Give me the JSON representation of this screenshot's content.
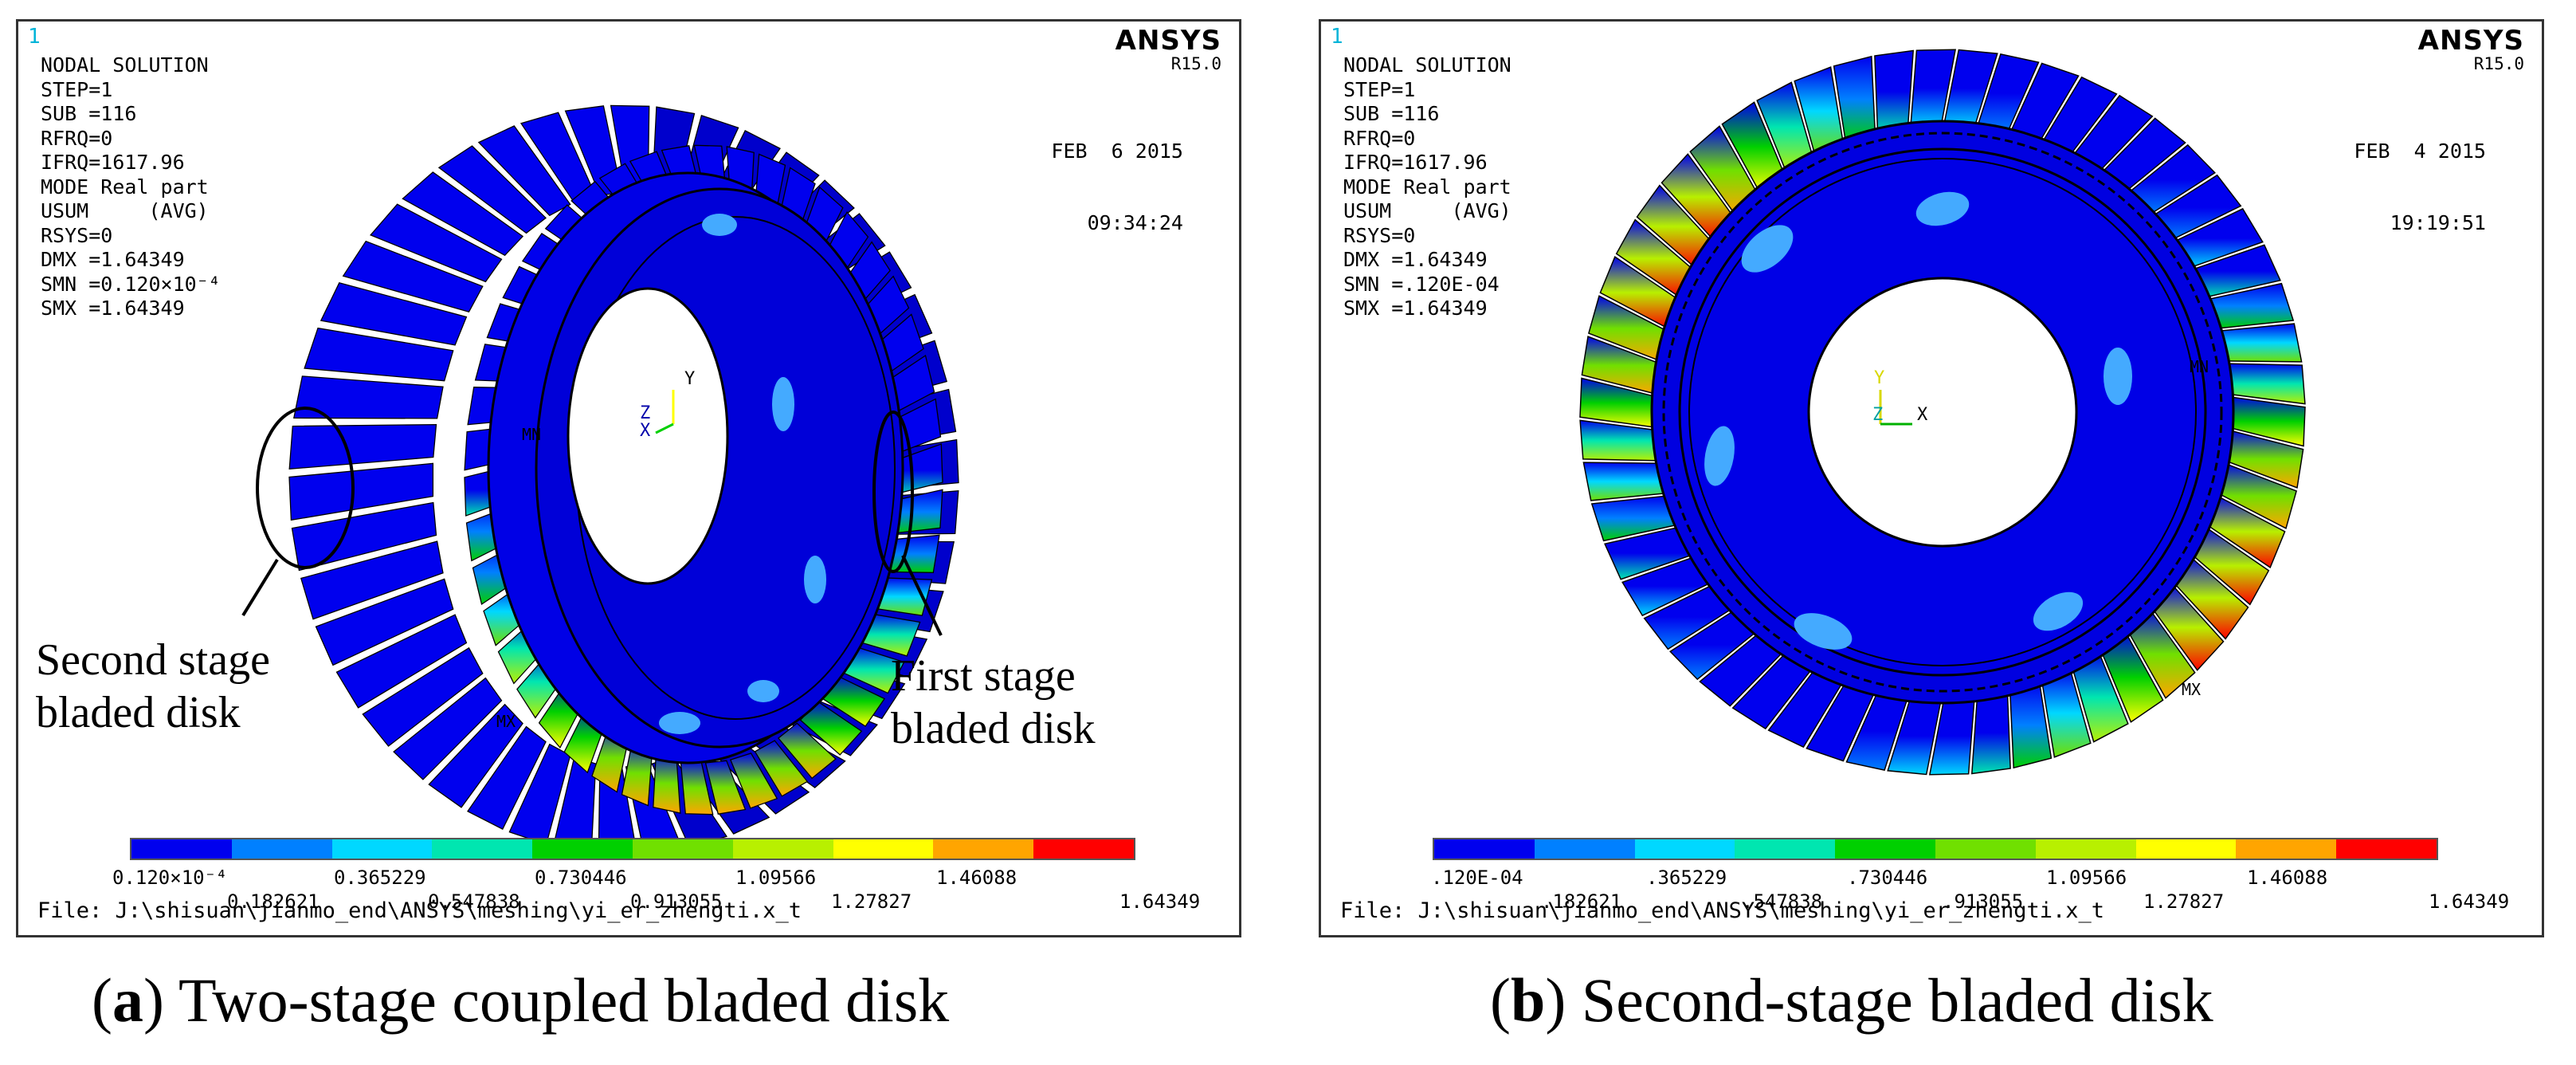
{
  "palette": [
    "#0000ee",
    "#0080ff",
    "#00d8ff",
    "#00e6b0",
    "#00d000",
    "#70e000",
    "#b8f000",
    "#ffff00",
    "#ffa500",
    "#ff0000"
  ],
  "panels": [
    {
      "window_number": "1",
      "brand": "ANSYS",
      "revision": "R15.0",
      "date": "FEB  6 2015",
      "time": "09:34:24",
      "info_lines": [
        "NODAL SOLUTION",
        "",
        "STEP=1",
        "SUB =116",
        "RFRQ=0",
        "IFRQ=1617.96",
        "MODE Real part",
        "USUM     (AVG)",
        "RSYS=0",
        "DMX =1.64349",
        "SMN =0.120×10⁻⁴",
        "SMX =1.64349"
      ],
      "legend_top": [
        "0.120×10⁻⁴",
        "0.365229",
        "0.730446",
        "1.09566",
        "1.46088"
      ],
      "legend_bottom": [
        "0.182621",
        "0.547838",
        "0.913055",
        "1.27827",
        "1.64349"
      ],
      "file": "File: J:\\shisuan\\jianmo_end\\ANSYS\\meshing\\yi_er_zhengti.x_t",
      "annotation_left": [
        "Second stage",
        "bladed disk"
      ],
      "annotation_right": [
        "First stage",
        "bladed disk"
      ],
      "axis_label_y": "Y",
      "axis_label_x": "X",
      "axis_label_z": "Z",
      "mx_label": "MX",
      "mn_label": "MN"
    },
    {
      "window_number": "1",
      "brand": "ANSYS",
      "revision": "R15.0",
      "date": "FEB  4 2015",
      "time": "19:19:51",
      "info_lines": [
        "NODAL SOLUTION",
        "",
        "STEP=1",
        "SUB =116",
        "RFRQ=0",
        "IFRQ=1617.96",
        "MODE Real part",
        "USUM     (AVG)",
        "RSYS=0",
        "DMX =1.64349",
        "SMN =.120E-04",
        "SMX =1.64349"
      ],
      "legend_top": [
        ".120E-04",
        ".365229",
        ".730446",
        "1.09566",
        "1.46088"
      ],
      "legend_bottom": [
        ".182621",
        ".547838",
        ".913055",
        "1.27827",
        "1.64349"
      ],
      "file": "File: J:\\shisuan\\jianmo_end\\ANSYS\\meshing\\yi_er_zhengti.x_t",
      "axis_label_y": "Y",
      "axis_label_x": "X",
      "axis_label_z": "Z",
      "mx_label": "MX",
      "mn_label": "MN"
    }
  ],
  "captions": [
    {
      "tag": "(a)",
      "letter": "a",
      "text": " Two-stage coupled bladed disk"
    },
    {
      "tag": "(b)",
      "letter": "b",
      "text": " Second-stage bladed disk"
    }
  ]
}
